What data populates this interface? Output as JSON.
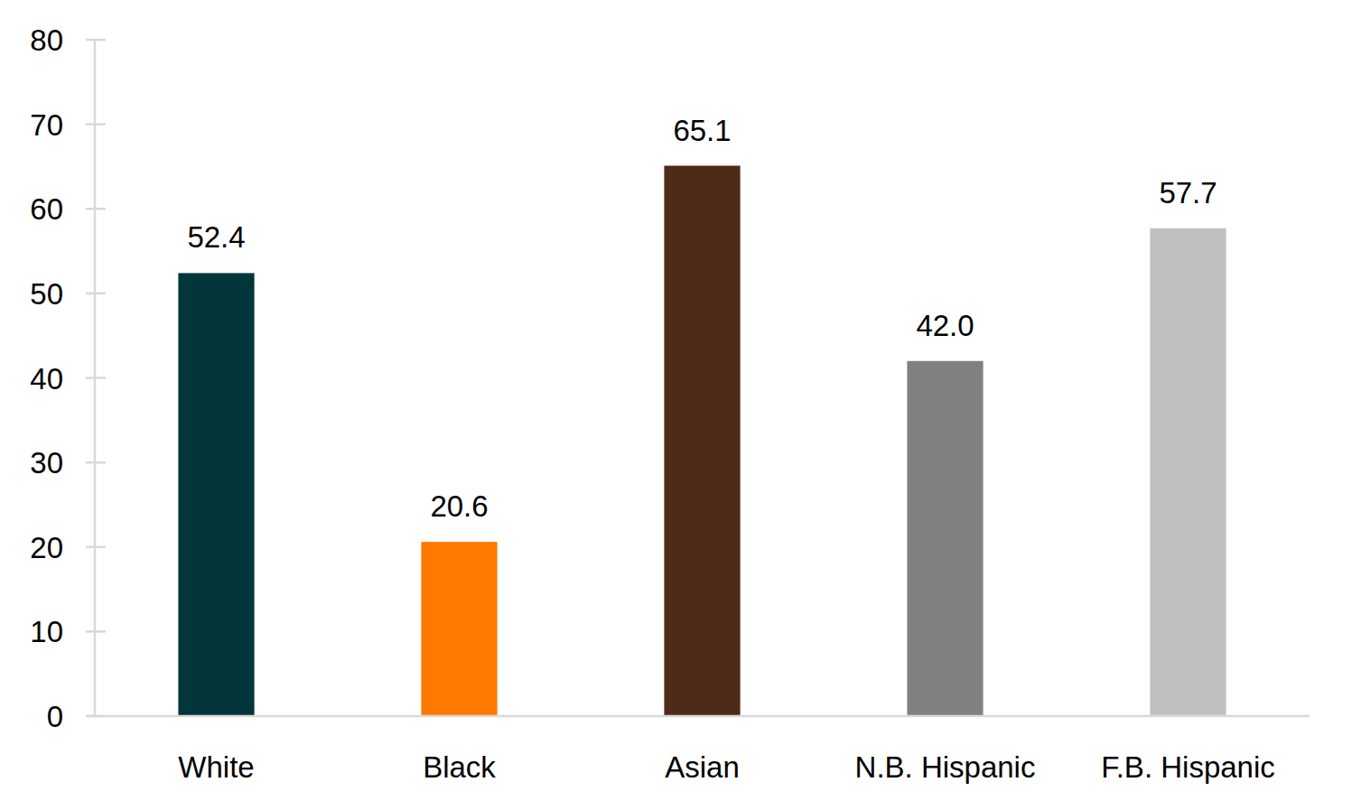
{
  "chart_data": {
    "type": "bar",
    "categories": [
      "White",
      "Black",
      "Asian",
      "N.B. Hispanic",
      "F.B. Hispanic"
    ],
    "values": [
      52.4,
      20.6,
      65.1,
      42.0,
      57.7
    ],
    "value_labels": [
      "52.4",
      "20.6",
      "65.1",
      "42.0",
      "57.7"
    ],
    "colors": [
      "#02363a",
      "#ff7800",
      "#4e2a19",
      "#808080",
      "#c0c0c0"
    ],
    "ylim": [
      0,
      80
    ],
    "yticks": [
      0,
      10,
      20,
      30,
      40,
      50,
      60,
      70,
      80
    ],
    "grid": false,
    "data_labels": true
  }
}
